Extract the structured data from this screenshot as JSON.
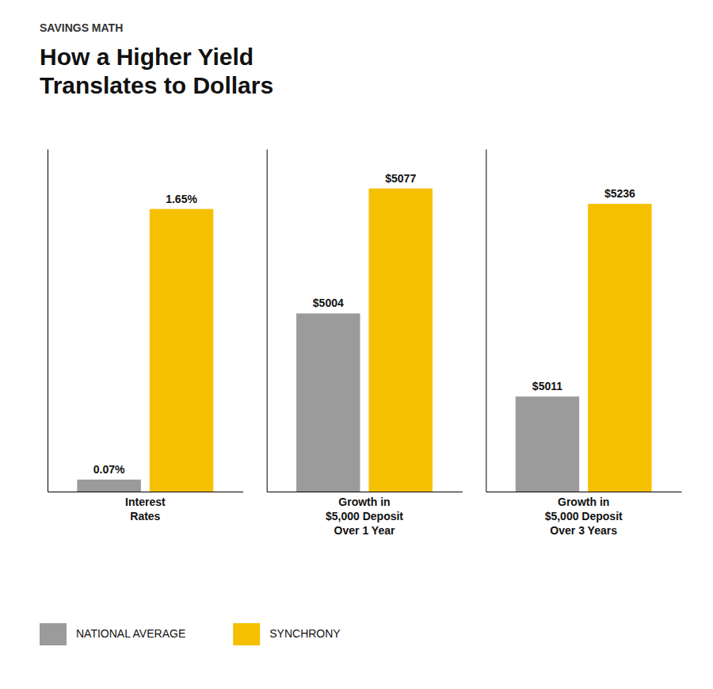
{
  "chart_data": [
    {
      "type": "bar",
      "title": "How a Higher Yield\nTranslates to Dollars",
      "subtitle": "SAVINGS MATH",
      "categories": [
        "Interest\nRates"
      ],
      "series": [
        {
          "name": "NATIONAL AVERAGE",
          "color": "#9B9B9B",
          "values": [
            0.07
          ],
          "value_labels": [
            "0.07%"
          ]
        },
        {
          "name": "SYNCHRONY",
          "color": "#F5C000",
          "values": [
            1.65
          ],
          "value_labels": [
            "1.65%"
          ]
        }
      ],
      "ylim": [
        0,
        2
      ],
      "data_labels": true,
      "tick_labels": "x",
      "legend": "bottom"
    },
    {
      "type": "bar",
      "categories": [
        "Growth in\n$5,000 Deposit\nOver 1 Year"
      ],
      "series": [
        {
          "color": "#9B9B9B",
          "values": [
            5004
          ],
          "value_labels": [
            "$5004"
          ]
        },
        {
          "color": "#F5C000",
          "values": [
            5077
          ],
          "value_labels": [
            "$5077"
          ]
        }
      ],
      "ylim": [
        4900,
        5100
      ],
      "data_labels": true,
      "tick_labels": "x"
    },
    {
      "type": "bar",
      "categories": [
        "Growth in\n$5,000 Deposit\nOver 3 Years"
      ],
      "series": [
        {
          "color": "#9B9B9B",
          "values": [
            5011
          ],
          "value_labels": [
            "$5011"
          ]
        },
        {
          "color": "#F5C000",
          "values": [
            5236
          ],
          "value_labels": [
            "$5236"
          ]
        }
      ],
      "ylim": [
        4900,
        5300
      ],
      "data_labels": true,
      "tick_labels": "x"
    }
  ]
}
